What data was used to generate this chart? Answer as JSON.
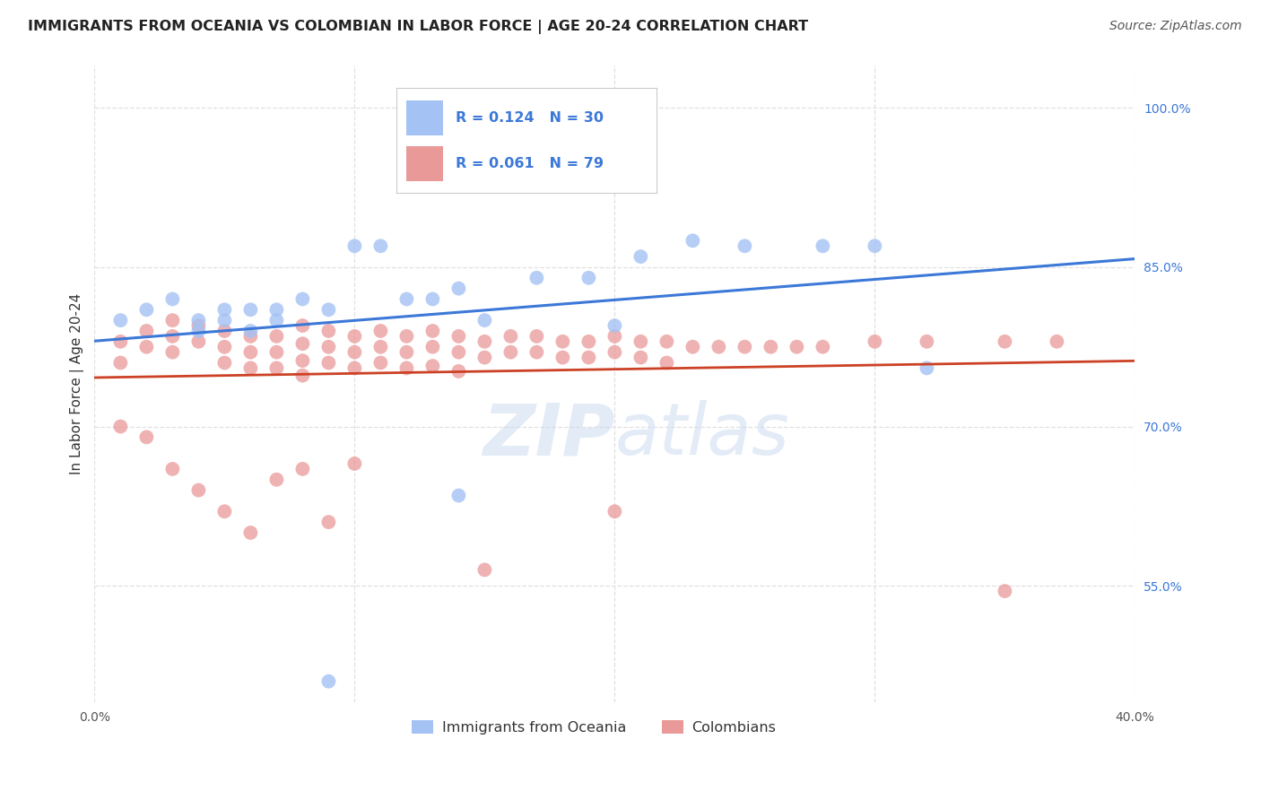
{
  "title": "IMMIGRANTS FROM OCEANIA VS COLOMBIAN IN LABOR FORCE | AGE 20-24 CORRELATION CHART",
  "source": "Source: ZipAtlas.com",
  "ylabel": "In Labor Force | Age 20-24",
  "xlim": [
    0.0,
    0.4
  ],
  "ylim": [
    0.44,
    1.04
  ],
  "xticks": [
    0.0,
    0.1,
    0.2,
    0.3,
    0.4
  ],
  "xticklabels": [
    "0.0%",
    "",
    "",
    "",
    "40.0%"
  ],
  "yticks": [
    0.55,
    0.7,
    0.85,
    1.0
  ],
  "yticklabels": [
    "55.0%",
    "70.0%",
    "85.0%",
    "100.0%"
  ],
  "blue_color": "#a4c2f4",
  "pink_color": "#ea9999",
  "trend_blue": "#3c78d8",
  "trend_pink": "#cc4125",
  "legend_blue_r": "R = 0.124",
  "legend_blue_n": "N = 30",
  "legend_pink_r": "R = 0.061",
  "legend_pink_n": "N = 79",
  "label_blue": "Immigrants from Oceania",
  "label_pink": "Colombians",
  "blue_x": [
    0.01,
    0.02,
    0.03,
    0.04,
    0.04,
    0.05,
    0.05,
    0.06,
    0.06,
    0.07,
    0.07,
    0.08,
    0.09,
    0.1,
    0.11,
    0.12,
    0.13,
    0.14,
    0.15,
    0.17,
    0.19,
    0.21,
    0.23,
    0.25,
    0.28,
    0.3,
    0.32,
    0.14,
    0.2,
    0.09
  ],
  "blue_y": [
    0.8,
    0.81,
    0.82,
    0.79,
    0.8,
    0.81,
    0.8,
    0.79,
    0.81,
    0.8,
    0.81,
    0.82,
    0.81,
    0.87,
    0.87,
    0.82,
    0.82,
    0.83,
    0.8,
    0.84,
    0.84,
    0.86,
    0.875,
    0.87,
    0.87,
    0.87,
    0.755,
    0.635,
    0.795,
    0.46
  ],
  "pink_x": [
    0.01,
    0.01,
    0.02,
    0.02,
    0.03,
    0.03,
    0.03,
    0.04,
    0.04,
    0.05,
    0.05,
    0.05,
    0.06,
    0.06,
    0.06,
    0.07,
    0.07,
    0.07,
    0.08,
    0.08,
    0.08,
    0.08,
    0.09,
    0.09,
    0.09,
    0.1,
    0.1,
    0.1,
    0.11,
    0.11,
    0.11,
    0.12,
    0.12,
    0.12,
    0.13,
    0.13,
    0.13,
    0.14,
    0.14,
    0.14,
    0.15,
    0.15,
    0.16,
    0.16,
    0.17,
    0.17,
    0.18,
    0.18,
    0.19,
    0.19,
    0.2,
    0.2,
    0.21,
    0.21,
    0.22,
    0.22,
    0.23,
    0.24,
    0.25,
    0.26,
    0.27,
    0.28,
    0.3,
    0.32,
    0.35,
    0.37,
    0.01,
    0.02,
    0.03,
    0.04,
    0.05,
    0.06,
    0.07,
    0.08,
    0.09,
    0.1,
    0.15,
    0.2,
    0.35
  ],
  "pink_y": [
    0.78,
    0.76,
    0.79,
    0.775,
    0.8,
    0.785,
    0.77,
    0.795,
    0.78,
    0.79,
    0.775,
    0.76,
    0.785,
    0.77,
    0.755,
    0.785,
    0.77,
    0.755,
    0.795,
    0.778,
    0.762,
    0.748,
    0.79,
    0.775,
    0.76,
    0.785,
    0.77,
    0.755,
    0.79,
    0.775,
    0.76,
    0.785,
    0.77,
    0.755,
    0.79,
    0.775,
    0.757,
    0.785,
    0.77,
    0.752,
    0.78,
    0.765,
    0.785,
    0.77,
    0.785,
    0.77,
    0.78,
    0.765,
    0.78,
    0.765,
    0.785,
    0.77,
    0.78,
    0.765,
    0.78,
    0.76,
    0.775,
    0.775,
    0.775,
    0.775,
    0.775,
    0.775,
    0.78,
    0.78,
    0.78,
    0.78,
    0.7,
    0.69,
    0.66,
    0.64,
    0.62,
    0.6,
    0.65,
    0.66,
    0.61,
    0.665,
    0.565,
    0.62,
    0.545
  ],
  "grid_color": "#e0e0e0",
  "background_color": "#ffffff",
  "title_fontsize": 11.5,
  "axis_label_fontsize": 11,
  "tick_fontsize": 10,
  "legend_fontsize": 12,
  "source_fontsize": 10
}
